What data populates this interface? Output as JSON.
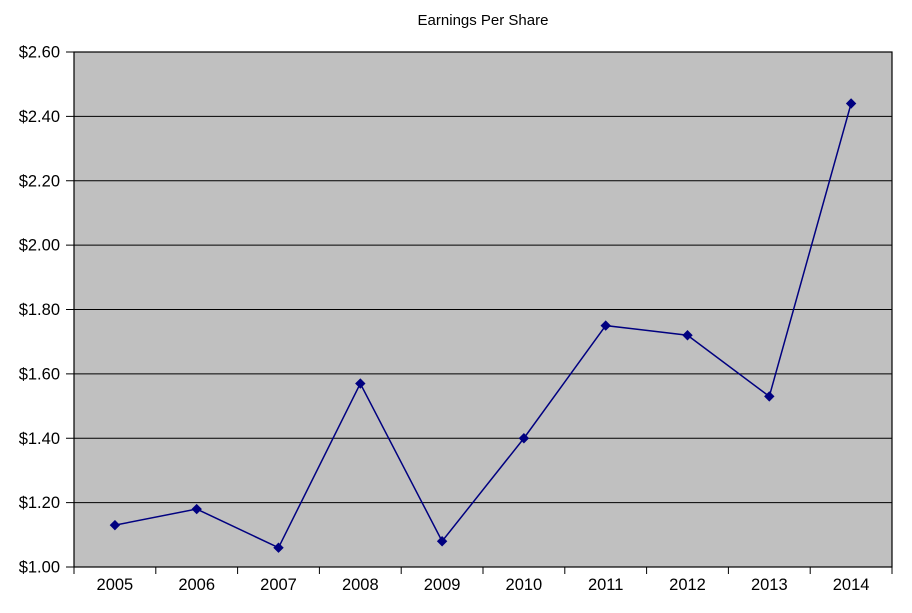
{
  "chart_data": {
    "type": "line",
    "title": "Earnings Per Share",
    "categories": [
      "2005",
      "2006",
      "2007",
      "2008",
      "2009",
      "2010",
      "2011",
      "2012",
      "2013",
      "2014"
    ],
    "series": [
      {
        "name": "Earnings Per Share",
        "values": [
          1.13,
          1.18,
          1.06,
          1.57,
          1.08,
          1.4,
          1.75,
          1.72,
          1.53,
          2.44
        ]
      }
    ],
    "xlabel": "",
    "ylabel": "",
    "ylim": [
      1.0,
      2.6
    ],
    "ytick_step": 0.2,
    "ytick_labels": [
      "$1.00",
      "$1.20",
      "$1.40",
      "$1.60",
      "$1.80",
      "$2.00",
      "$2.20",
      "$2.40",
      "$2.60"
    ],
    "grid": "horizontal",
    "legend": "none",
    "marker_shape": "diamond",
    "colors": {
      "line": "#000080",
      "marker": "#000080",
      "plot_background": "#C0C0C0",
      "gridline": "#000000",
      "axis": "#000000",
      "text": "#000000",
      "page_background": "#FFFFFF"
    }
  }
}
